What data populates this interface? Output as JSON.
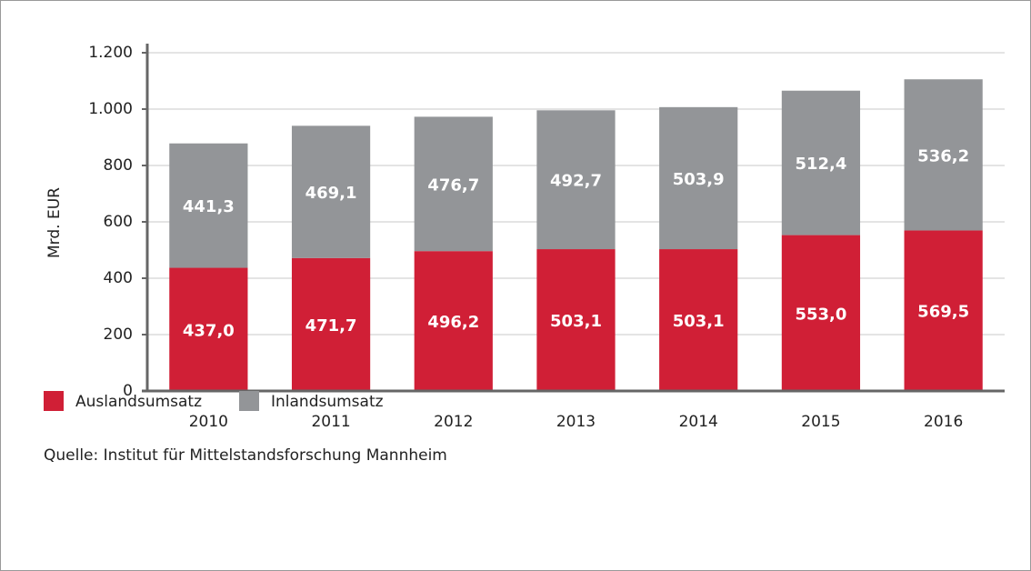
{
  "chart_data": {
    "type": "bar",
    "stacked": true,
    "ylabel": "Mrd. EUR",
    "source": "Quelle: Institut für Mittelstandsforschung Mannheim",
    "categories": [
      "2010",
      "2011",
      "2012",
      "2013",
      "2014",
      "2015",
      "2016"
    ],
    "series": [
      {
        "name": "Auslandsumsatz",
        "color": "#d01f36",
        "values": [
          437.0,
          471.7,
          496.2,
          503.1,
          503.1,
          553.0,
          569.5
        ],
        "value_labels": [
          "437,0",
          "471,7",
          "496,2",
          "503,1",
          "503,1",
          "553,0",
          "569,5"
        ]
      },
      {
        "name": "Inlandsumsatz",
        "color": "#939598",
        "values": [
          441.3,
          469.1,
          476.7,
          492.7,
          503.9,
          512.4,
          536.2
        ],
        "value_labels": [
          "441,3",
          "469,1",
          "476,7",
          "492,7",
          "503,9",
          "512,4",
          "536,2"
        ]
      }
    ],
    "ylim": [
      0,
      1200
    ],
    "yticks": [
      0,
      200,
      400,
      600,
      800,
      {
        "value": 1000,
        "label": "1.000"
      },
      {
        "value": 1200,
        "label": "1.200"
      }
    ],
    "grid": true,
    "legend": "bottom-left"
  }
}
